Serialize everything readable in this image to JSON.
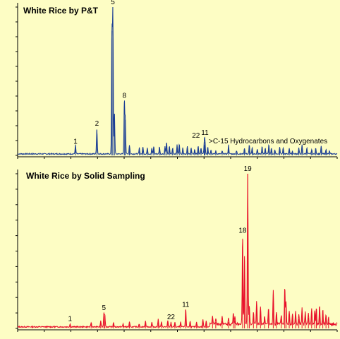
{
  "chart_data": [
    {
      "type": "line",
      "title": "White Rice by P&T",
      "annotation": ">C-15 Hydrocarbons and Oxygenates",
      "color": "#1c3f94",
      "xlim": [
        0,
        100
      ],
      "ylim": [
        0,
        100
      ],
      "grid": false,
      "peak_labels": [
        {
          "label": "1",
          "x": 18.1,
          "y": 6
        },
        {
          "label": "2",
          "x": 24.8,
          "y": 18
        },
        {
          "label": "5",
          "x": 29.8,
          "y": 100
        },
        {
          "label": "8",
          "x": 33.4,
          "y": 37
        },
        {
          "label": "22",
          "x": 55.8,
          "y": 10
        },
        {
          "label": "11",
          "x": 58.6,
          "y": 12
        }
      ],
      "peaks": [
        [
          18.1,
          6
        ],
        [
          24.8,
          17
        ],
        [
          29.5,
          84
        ],
        [
          29.8,
          100
        ],
        [
          30.3,
          28
        ],
        [
          33.4,
          36
        ],
        [
          33.7,
          24
        ],
        [
          35.0,
          6
        ],
        [
          38.1,
          4
        ],
        [
          39.2,
          5
        ],
        [
          40.6,
          4
        ],
        [
          42.0,
          4
        ],
        [
          42.6,
          5
        ],
        [
          44.4,
          5
        ],
        [
          46.1,
          5
        ],
        [
          46.6,
          8
        ],
        [
          47.5,
          5
        ],
        [
          48.5,
          4
        ],
        [
          49.9,
          6
        ],
        [
          50.6,
          7
        ],
        [
          51.7,
          4
        ],
        [
          53.1,
          5
        ],
        [
          54.3,
          4
        ],
        [
          55.4,
          3
        ],
        [
          56.5,
          5
        ],
        [
          57.4,
          4
        ],
        [
          58.4,
          7
        ],
        [
          58.6,
          9
        ],
        [
          59.5,
          5
        ],
        [
          60.5,
          3
        ],
        [
          62.0,
          2
        ],
        [
          64.0,
          2
        ],
        [
          66.0,
          6
        ],
        [
          68.5,
          2
        ],
        [
          71.0,
          4
        ],
        [
          72.5,
          6
        ],
        [
          73.4,
          4
        ],
        [
          75.0,
          3
        ],
        [
          76.5,
          5
        ],
        [
          77.5,
          4
        ],
        [
          78.6,
          6
        ],
        [
          79.4,
          4
        ],
        [
          80.5,
          3
        ],
        [
          82.0,
          5
        ],
        [
          83.1,
          4
        ],
        [
          85.0,
          4
        ],
        [
          86.0,
          2
        ],
        [
          88.0,
          4
        ],
        [
          89.0,
          6
        ],
        [
          90.5,
          4
        ],
        [
          92.0,
          3
        ],
        [
          93.3,
          4
        ],
        [
          95.0,
          5
        ],
        [
          96.5,
          3
        ],
        [
          97.6,
          2
        ]
      ]
    },
    {
      "type": "line",
      "title": "White Rice by Solid Sampling",
      "color": "#e8102a",
      "xlim": [
        0,
        100
      ],
      "ylim": [
        0,
        100
      ],
      "grid": false,
      "peak_labels": [
        {
          "label": "1",
          "x": 16.4,
          "y": 3
        },
        {
          "label": "5",
          "x": 27.0,
          "y": 10
        },
        {
          "label": "22",
          "x": 48.0,
          "y": 4
        },
        {
          "label": "11",
          "x": 52.6,
          "y": 12
        },
        {
          "label": "18",
          "x": 70.4,
          "y": 60
        },
        {
          "label": "19",
          "x": 72.0,
          "y": 100
        }
      ],
      "peaks": [
        [
          16.4,
          2
        ],
        [
          23.0,
          3
        ],
        [
          26.0,
          4
        ],
        [
          27.0,
          9
        ],
        [
          27.3,
          8
        ],
        [
          30.0,
          3
        ],
        [
          33.0,
          2
        ],
        [
          35.0,
          3
        ],
        [
          38.0,
          2
        ],
        [
          40.0,
          4
        ],
        [
          42.0,
          3
        ],
        [
          44.0,
          5
        ],
        [
          45.0,
          3
        ],
        [
          47.0,
          4
        ],
        [
          48.0,
          3
        ],
        [
          49.2,
          3
        ],
        [
          51.0,
          3
        ],
        [
          52.6,
          12
        ],
        [
          54.0,
          4
        ],
        [
          56.0,
          3
        ],
        [
          58.0,
          5
        ],
        [
          59.0,
          4
        ],
        [
          61.0,
          6
        ],
        [
          62.0,
          4
        ],
        [
          64.0,
          5
        ],
        [
          66.0,
          4
        ],
        [
          67.5,
          7
        ],
        [
          68.0,
          5
        ],
        [
          70.4,
          58
        ],
        [
          71.0,
          44
        ],
        [
          72.0,
          100
        ],
        [
          72.5,
          12
        ],
        [
          73.8,
          8
        ],
        [
          74.8,
          15
        ],
        [
          76.0,
          11
        ],
        [
          77.3,
          6
        ],
        [
          78.5,
          10
        ],
        [
          80.0,
          22
        ],
        [
          81.0,
          8
        ],
        [
          82.5,
          6
        ],
        [
          83.6,
          25
        ],
        [
          84.0,
          14
        ],
        [
          85.0,
          9
        ],
        [
          86.0,
          7
        ],
        [
          87.0,
          8
        ],
        [
          88.0,
          6
        ],
        [
          89.0,
          10
        ],
        [
          90.0,
          8
        ],
        [
          91.0,
          7
        ],
        [
          92.0,
          10
        ],
        [
          93.0,
          9
        ],
        [
          93.5,
          11
        ],
        [
          94.5,
          12
        ],
        [
          95.5,
          9
        ],
        [
          96.5,
          7
        ],
        [
          97.3,
          4
        ]
      ]
    }
  ]
}
